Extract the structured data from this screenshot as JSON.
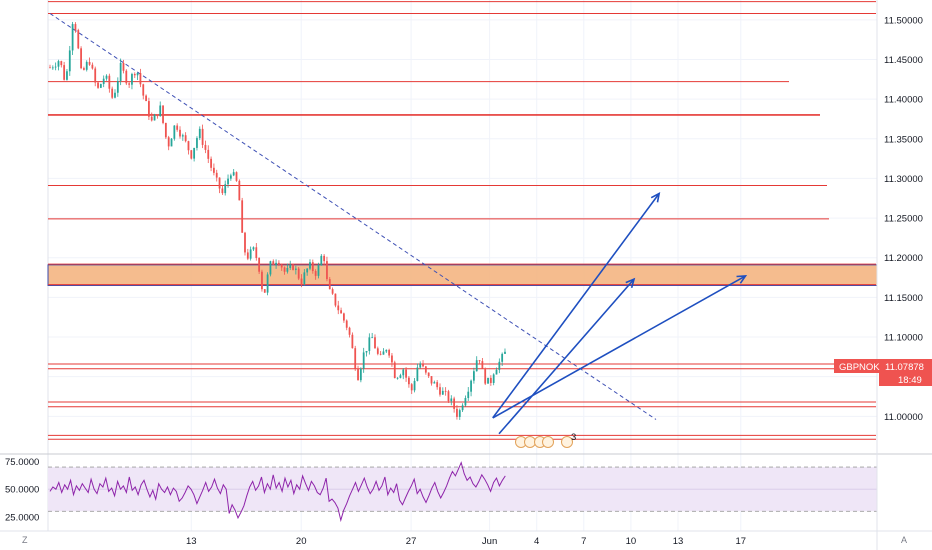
{
  "symbol": "GBPNOK",
  "last_price": "11.07878",
  "countdown": "18:49",
  "event_count": "3",
  "corner_left": "Z",
  "corner_right": "A",
  "colors": {
    "candle_up": "#26a69a",
    "candle_down": "#ef5350",
    "candle_body": "#8b7a68",
    "level": "#e53935",
    "zone_fill": "#f3b07a",
    "zone_border": "#3949ab",
    "arrow": "#1e4fc0",
    "trend_dash": "#3f51b5",
    "rsi": "#8e24aa",
    "rsi_band": "#efe6f7",
    "price_tag": "#ef5350"
  },
  "chart_data": {
    "type": "line",
    "title": "",
    "price_axis": {
      "ylim": [
        10.955,
        11.525
      ],
      "ticks": [
        "11.50000",
        "11.45000",
        "11.40000",
        "11.35000",
        "11.30000",
        "11.25000",
        "11.20000",
        "11.15000",
        "11.10000",
        "11.05000",
        "11.00000"
      ]
    },
    "time_axis": {
      "labels": [
        {
          "day": 9,
          "label": "13"
        },
        {
          "day": 16,
          "label": "20"
        },
        {
          "day": 23,
          "label": "27"
        },
        {
          "day": 28,
          "label": "Jun"
        },
        {
          "day": 31,
          "label": "4"
        },
        {
          "day": 34,
          "label": "7"
        },
        {
          "day": 37,
          "label": "10"
        },
        {
          "day": 40,
          "label": "13"
        },
        {
          "day": 44,
          "label": "17"
        }
      ]
    },
    "price_path": [
      [
        0,
        11.44
      ],
      [
        0.6,
        11.45
      ],
      [
        1.0,
        11.42
      ],
      [
        1.5,
        11.51
      ],
      [
        2.0,
        11.43
      ],
      [
        2.5,
        11.45
      ],
      [
        3.0,
        11.41
      ],
      [
        3.5,
        11.43
      ],
      [
        4.0,
        11.4
      ],
      [
        4.5,
        11.44
      ],
      [
        5.0,
        11.42
      ],
      [
        5.5,
        11.44
      ],
      [
        6.0,
        11.4
      ],
      [
        6.5,
        11.37
      ],
      [
        7.0,
        11.39
      ],
      [
        7.5,
        11.34
      ],
      [
        8.0,
        11.37
      ],
      [
        8.5,
        11.35
      ],
      [
        9.0,
        11.33
      ],
      [
        9.5,
        11.36
      ],
      [
        10.0,
        11.33
      ],
      [
        10.5,
        11.3
      ],
      [
        11.0,
        11.28
      ],
      [
        11.5,
        11.31
      ],
      [
        12.0,
        11.29
      ],
      [
        12.2,
        11.23
      ],
      [
        12.5,
        11.2
      ],
      [
        13.0,
        11.21
      ],
      [
        13.3,
        11.19
      ],
      [
        13.6,
        11.15
      ],
      [
        14.0,
        11.19
      ],
      [
        14.5,
        11.2
      ],
      [
        15.0,
        11.18
      ],
      [
        15.5,
        11.19
      ],
      [
        16.0,
        11.17
      ],
      [
        16.5,
        11.19
      ],
      [
        17.0,
        11.18
      ],
      [
        17.4,
        11.21
      ],
      [
        17.7,
        11.16
      ],
      [
        18.0,
        11.15
      ],
      [
        18.5,
        11.13
      ],
      [
        19.0,
        11.11
      ],
      [
        19.3,
        11.08
      ],
      [
        19.6,
        11.05
      ],
      [
        20.0,
        11.08
      ],
      [
        20.5,
        11.1
      ],
      [
        21.0,
        11.07
      ],
      [
        21.5,
        11.09
      ],
      [
        22.0,
        11.05
      ],
      [
        22.5,
        11.06
      ],
      [
        23.0,
        11.03
      ],
      [
        23.5,
        11.07
      ],
      [
        24.0,
        11.05
      ],
      [
        24.5,
        11.04
      ],
      [
        25.0,
        11.03
      ],
      [
        25.5,
        11.02
      ],
      [
        26.0,
        11.0
      ],
      [
        26.3,
        11.02
      ],
      [
        26.7,
        11.04
      ],
      [
        27.0,
        11.06
      ],
      [
        27.3,
        11.08
      ],
      [
        27.6,
        11.05
      ],
      [
        28.0,
        11.04
      ],
      [
        28.3,
        11.06
      ],
      [
        28.7,
        11.07
      ],
      [
        29.0,
        11.08
      ]
    ],
    "horizontal_levels": [
      11.523,
      11.508,
      11.422,
      11.38,
      11.291,
      11.249,
      11.192,
      11.166,
      11.066,
      11.06,
      11.018,
      11.012,
      10.976,
      10.971
    ],
    "zone": [
      11.165,
      11.191
    ],
    "trend_line": {
      "from": [
        0,
        11.508
      ],
      "to": [
        38.6,
        10.996
      ]
    },
    "forecast_arrows": [
      {
        "from": [
          28.2,
          10.998
        ],
        "to": [
          38.8,
          11.281
        ]
      },
      {
        "from": [
          28.6,
          10.978
        ],
        "to": [
          37.2,
          11.173
        ]
      },
      {
        "from": [
          28.2,
          10.998
        ],
        "to": [
          44.3,
          11.177
        ]
      }
    ],
    "rsi": {
      "ylim": [
        14,
        80
      ],
      "ticks": [
        "75.0000",
        "50.0000",
        "25.0000"
      ],
      "upper_band": 70,
      "mid_band": 50,
      "lower_band": 30,
      "values": [
        48,
        52,
        50,
        56,
        47,
        54,
        50,
        58,
        45,
        53,
        49,
        55,
        51,
        47,
        59,
        50,
        46,
        55,
        52,
        60,
        48,
        51,
        44,
        57,
        50,
        53,
        47,
        61,
        49,
        52,
        45,
        54,
        58,
        50,
        43,
        49,
        41,
        55,
        50,
        47,
        52,
        45,
        51,
        48,
        39,
        42,
        47,
        53,
        50,
        45,
        37,
        43,
        49,
        56,
        48,
        52,
        59,
        51,
        46,
        54,
        50,
        28,
        36,
        31,
        24,
        29,
        35,
        44,
        52,
        57,
        49,
        53,
        61,
        47,
        55,
        50,
        63,
        51,
        56,
        48,
        60,
        52,
        58,
        46,
        54,
        50,
        62,
        55,
        49,
        57,
        53,
        47,
        45,
        51,
        60,
        39,
        41,
        38,
        33,
        22,
        31,
        37,
        44,
        50,
        56,
        48,
        54,
        60,
        52,
        46,
        50,
        57,
        49,
        53,
        61,
        45,
        51,
        47,
        55,
        40,
        36,
        42,
        48,
        53,
        59,
        46,
        50,
        43,
        38,
        44,
        51,
        56,
        48,
        42,
        47,
        53,
        60,
        66,
        62,
        68,
        74,
        64,
        58,
        61,
        55,
        52,
        57,
        63,
        59,
        54,
        48,
        56,
        60,
        53,
        58,
        62
      ]
    }
  }
}
